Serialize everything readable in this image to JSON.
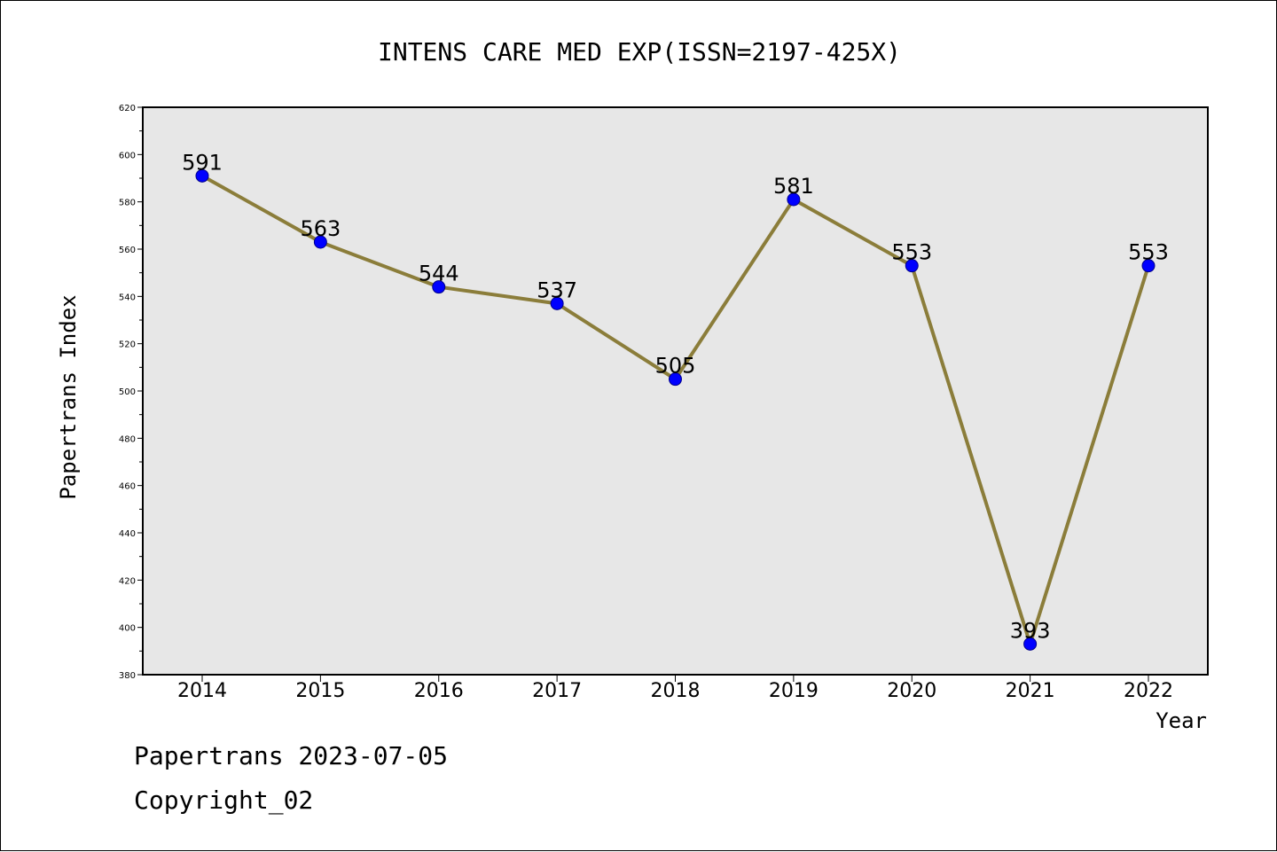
{
  "chart_data": {
    "type": "line",
    "title": "INTENS CARE MED EXP(ISSN=2197-425X)",
    "xlabel": "Year",
    "ylabel": "Papertrans Index",
    "categories": [
      "2014",
      "2015",
      "2016",
      "2017",
      "2018",
      "2019",
      "2020",
      "2021",
      "2022"
    ],
    "series": [
      {
        "values": [
          591,
          563,
          544,
          537,
          505,
          581,
          553,
          393,
          553
        ]
      }
    ],
    "ylim": [
      380,
      620
    ],
    "yticks": [
      380,
      400,
      420,
      440,
      460,
      480,
      500,
      520,
      540,
      560,
      580,
      600,
      620
    ],
    "grid": false,
    "data_labels": true,
    "colors": {
      "line": "#8b7d3a",
      "marker": "#0000ff",
      "plot_background": "#e7e7e7"
    }
  },
  "footer": {
    "line1": "Papertrans 2023-07-05",
    "line2": "Copyright_02"
  }
}
